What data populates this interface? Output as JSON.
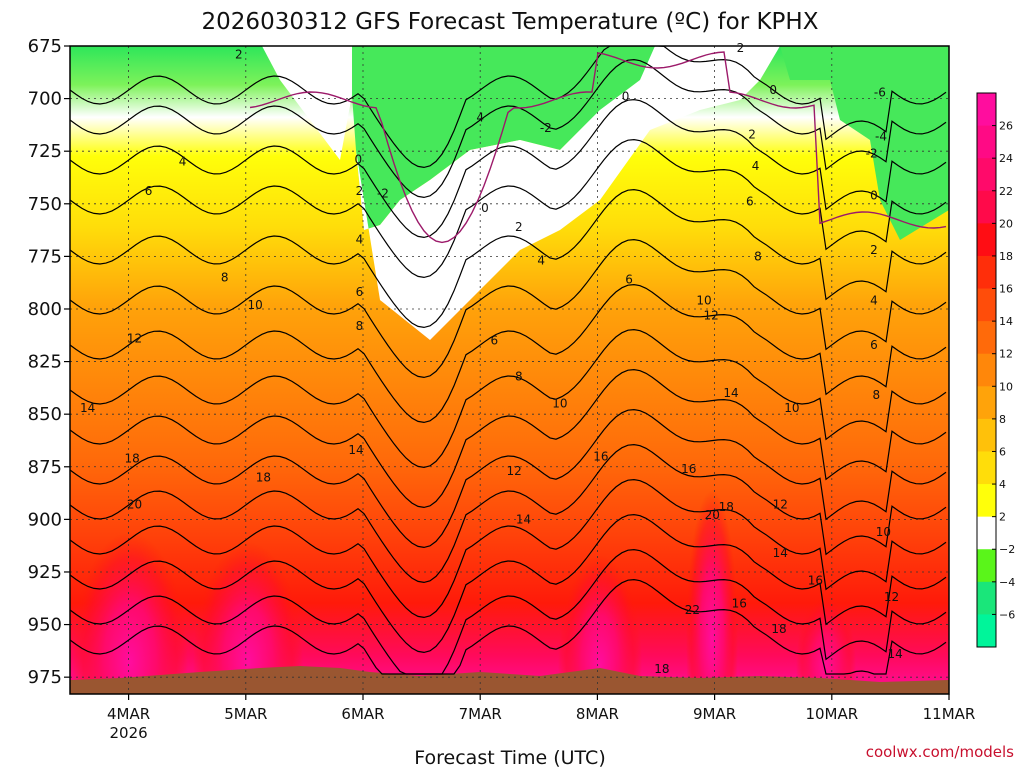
{
  "chart_data": {
    "type": "heatmap",
    "title": "2026030312 GFS Forecast Temperature (ºC) for KPHX",
    "xlabel": "Forecast Time (UTC)",
    "ylabel": "",
    "credit": "coolwx.com/models",
    "y_levels": [
      "675",
      "700",
      "725",
      "750",
      "775",
      "800",
      "825",
      "850",
      "875",
      "900",
      "925",
      "950",
      "975"
    ],
    "x_ticks": [
      {
        "line1": "4MAR",
        "line2": "2026"
      },
      {
        "line1": "5MAR",
        "line2": ""
      },
      {
        "line1": "6MAR",
        "line2": ""
      },
      {
        "line1": "7MAR",
        "line2": ""
      },
      {
        "line1": "8MAR",
        "line2": ""
      },
      {
        "line1": "9MAR",
        "line2": ""
      },
      {
        "line1": "10MAR",
        "line2": ""
      },
      {
        "line1": "11MAR",
        "line2": ""
      }
    ],
    "colorbar_labels": [
      "26",
      "24",
      "22",
      "20",
      "18",
      "16",
      "14",
      "12",
      "10",
      "8",
      "6",
      "4",
      "2",
      "−2",
      "−4",
      "−6"
    ],
    "colorbar_colors": [
      "#ff0d9e",
      "#ff0a85",
      "#ff0a6a",
      "#ff0a4a",
      "#ff0d14",
      "#ff2e0a",
      "#ff4d0a",
      "#ff6a0a",
      "#ff870a",
      "#ffa30a",
      "#ffc10a",
      "#ffdd0a",
      "#ffff0a",
      "#ffffff",
      "#5af51a",
      "#1ae67a",
      "#00f59a"
    ],
    "contour_labels": [
      {
        "text": "2",
        "day": 0.94,
        "hpa": 679
      },
      {
        "text": "4",
        "day": 0.46,
        "hpa": 730
      },
      {
        "text": "6",
        "day": 0.17,
        "hpa": 744
      },
      {
        "text": "8",
        "day": 0.82,
        "hpa": 785
      },
      {
        "text": "10",
        "day": 1.08,
        "hpa": 798
      },
      {
        "text": "12",
        "day": 0.05,
        "hpa": 814
      },
      {
        "text": "14",
        "day": -0.35,
        "hpa": 847
      },
      {
        "text": "18",
        "day": 0.03,
        "hpa": 871
      },
      {
        "text": "20",
        "day": 0.05,
        "hpa": 893
      },
      {
        "text": "18",
        "day": 1.15,
        "hpa": 880
      },
      {
        "text": "14",
        "day": 1.94,
        "hpa": 867
      },
      {
        "text": "0",
        "day": 1.96,
        "hpa": 729
      },
      {
        "text": "2",
        "day": 1.97,
        "hpa": 744
      },
      {
        "text": "-2",
        "day": 2.17,
        "hpa": 745
      },
      {
        "text": "4",
        "day": 1.97,
        "hpa": 767
      },
      {
        "text": "6",
        "day": 1.97,
        "hpa": 792
      },
      {
        "text": "8",
        "day": 1.97,
        "hpa": 808
      },
      {
        "text": "4",
        "day": 3.0,
        "hpa": 709
      },
      {
        "text": "-2",
        "day": 3.56,
        "hpa": 714
      },
      {
        "text": "0",
        "day": 3.04,
        "hpa": 752
      },
      {
        "text": "2",
        "day": 3.33,
        "hpa": 761
      },
      {
        "text": "4",
        "day": 3.52,
        "hpa": 777
      },
      {
        "text": "6",
        "day": 3.12,
        "hpa": 815
      },
      {
        "text": "8",
        "day": 3.33,
        "hpa": 832
      },
      {
        "text": "10",
        "day": 3.68,
        "hpa": 845
      },
      {
        "text": "12",
        "day": 3.29,
        "hpa": 877
      },
      {
        "text": "14",
        "day": 3.37,
        "hpa": 900
      },
      {
        "text": "0",
        "day": 4.24,
        "hpa": 699
      },
      {
        "text": "6",
        "day": 4.27,
        "hpa": 786
      },
      {
        "text": "16",
        "day": 4.03,
        "hpa": 870
      },
      {
        "text": "2",
        "day": 5.22,
        "hpa": 676
      },
      {
        "text": "0",
        "day": 5.5,
        "hpa": 696
      },
      {
        "text": "2",
        "day": 5.32,
        "hpa": 717
      },
      {
        "text": "4",
        "day": 5.35,
        "hpa": 732
      },
      {
        "text": "6",
        "day": 5.3,
        "hpa": 749
      },
      {
        "text": "8",
        "day": 5.37,
        "hpa": 775
      },
      {
        "text": "10",
        "day": 4.91,
        "hpa": 796
      },
      {
        "text": "12",
        "day": 4.97,
        "hpa": 803
      },
      {
        "text": "14",
        "day": 5.14,
        "hpa": 840
      },
      {
        "text": "16",
        "day": 4.78,
        "hpa": 876
      },
      {
        "text": "18",
        "day": 5.1,
        "hpa": 894
      },
      {
        "text": "20",
        "day": 4.98,
        "hpa": 898
      },
      {
        "text": "16",
        "day": 5.21,
        "hpa": 940
      },
      {
        "text": "22",
        "day": 4.81,
        "hpa": 943
      },
      {
        "text": "18",
        "day": 4.55,
        "hpa": 971
      },
      {
        "text": "10",
        "day": 5.66,
        "hpa": 847
      },
      {
        "text": "12",
        "day": 5.56,
        "hpa": 893
      },
      {
        "text": "14",
        "day": 5.56,
        "hpa": 916
      },
      {
        "text": "16",
        "day": 5.86,
        "hpa": 929
      },
      {
        "text": "18",
        "day": 5.55,
        "hpa": 952
      },
      {
        "text": "-6",
        "day": 6.41,
        "hpa": 697
      },
      {
        "text": "-4",
        "day": 6.42,
        "hpa": 718
      },
      {
        "text": "-2",
        "day": 6.34,
        "hpa": 726
      },
      {
        "text": "0",
        "day": 6.36,
        "hpa": 746
      },
      {
        "text": "2",
        "day": 6.36,
        "hpa": 772
      },
      {
        "text": "4",
        "day": 6.36,
        "hpa": 796
      },
      {
        "text": "6",
        "day": 6.36,
        "hpa": 817
      },
      {
        "text": "8",
        "day": 6.38,
        "hpa": 841
      },
      {
        "text": "10",
        "day": 6.44,
        "hpa": 906
      },
      {
        "text": "12",
        "day": 6.51,
        "hpa": 937
      },
      {
        "text": "14",
        "day": 6.54,
        "hpa": 964
      }
    ]
  }
}
